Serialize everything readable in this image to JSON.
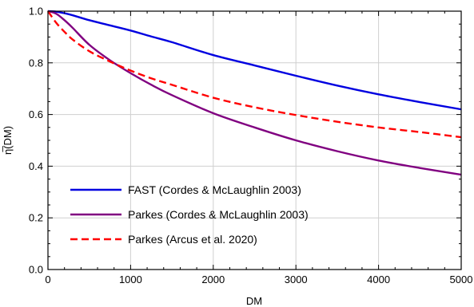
{
  "chart_data": {
    "type": "line",
    "xlabel": "DM",
    "ylabel": "η̅(DM)",
    "xlim": [
      0,
      5000
    ],
    "ylim": [
      0.0,
      1.0
    ],
    "x_ticks": [
      0,
      1000,
      2000,
      3000,
      4000,
      5000
    ],
    "y_ticks": [
      0.0,
      0.2,
      0.4,
      0.6,
      0.8,
      1.0
    ],
    "x_tick_labels": [
      "0",
      "1000",
      "2000",
      "3000",
      "4000",
      "5000"
    ],
    "y_tick_labels": [
      "0.0",
      "0.2",
      "0.4",
      "0.6",
      "0.8",
      "1.0"
    ],
    "grid": true,
    "legend_position": "lower-left",
    "series": [
      {
        "name": "FAST (Cordes & McLaughlin 2003)",
        "color": "#0000e0",
        "dash": "solid",
        "x": [
          0,
          100,
          200,
          300,
          500,
          750,
          1000,
          1250,
          1500,
          2000,
          2500,
          3000,
          3500,
          4000,
          4500,
          5000
        ],
        "y": [
          1.0,
          0.998,
          0.992,
          0.984,
          0.965,
          0.945,
          0.925,
          0.902,
          0.88,
          0.83,
          0.79,
          0.75,
          0.712,
          0.678,
          0.648,
          0.62
        ]
      },
      {
        "name": "Parkes (Cordes & McLaughlin 2003)",
        "color": "#800080",
        "dash": "solid",
        "x": [
          0,
          100,
          200,
          300,
          500,
          750,
          1000,
          1250,
          1500,
          2000,
          2500,
          3000,
          3500,
          4000,
          4500,
          5000
        ],
        "y": [
          1.0,
          0.99,
          0.965,
          0.935,
          0.87,
          0.81,
          0.76,
          0.715,
          0.675,
          0.605,
          0.55,
          0.5,
          0.458,
          0.422,
          0.393,
          0.367
        ]
      },
      {
        "name": "Parkes (Arcus et al. 2020)",
        "color": "#ff0000",
        "dash": "dashed",
        "x": [
          0,
          100,
          200,
          300,
          500,
          750,
          1000,
          1250,
          1500,
          2000,
          2500,
          3000,
          3500,
          4000,
          4500,
          5000
        ],
        "y": [
          1.0,
          0.955,
          0.92,
          0.89,
          0.845,
          0.805,
          0.77,
          0.74,
          0.715,
          0.665,
          0.628,
          0.598,
          0.572,
          0.55,
          0.532,
          0.512
        ]
      }
    ]
  }
}
